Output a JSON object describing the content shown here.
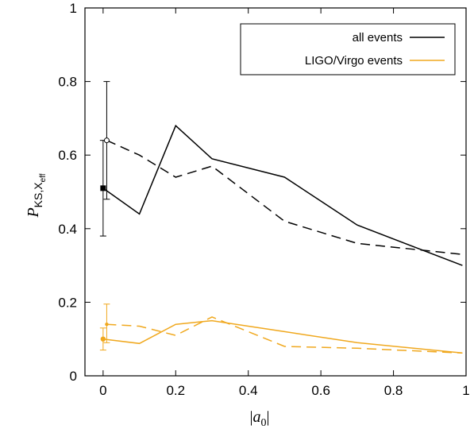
{
  "chart_data": {
    "type": "line",
    "xlabel": "|a0|",
    "xlabel_parts": {
      "open": "|",
      "var": "a",
      "sub": "0",
      "close": "|"
    },
    "ylabel": "PKS,Xeff",
    "ylabel_parts": {
      "var": "P",
      "sub": "KS,X",
      "subsub": "eff"
    },
    "xlim": [
      -0.05,
      1.0
    ],
    "ylim": [
      0,
      1
    ],
    "xticks": [
      0,
      0.2,
      0.4,
      0.6,
      0.8,
      1
    ],
    "yticks": [
      0,
      0.2,
      0.4,
      0.6,
      0.8,
      1
    ],
    "xtick_labels": [
      "0",
      "0.2",
      "0.4",
      "0.6",
      "0.8",
      "1"
    ],
    "ytick_labels": [
      "0",
      "0.2",
      "0.4",
      "0.6",
      "0.8",
      "1"
    ],
    "grid": false,
    "legend_position": "top-right",
    "series": [
      {
        "name": "all events",
        "color": "#000000",
        "style": "solid",
        "x": [
          0.0,
          0.1,
          0.2,
          0.3,
          0.5,
          0.7,
          0.99
        ],
        "y": [
          0.51,
          0.44,
          0.68,
          0.59,
          0.54,
          0.41,
          0.3
        ],
        "error_point": {
          "x": 0.0,
          "y": 0.51,
          "ylow": 0.38,
          "yhigh": 0.64,
          "marker": "filled-square"
        }
      },
      {
        "color": "#000000",
        "style": "dashed",
        "x": [
          0.01,
          0.1,
          0.2,
          0.3,
          0.5,
          0.7,
          0.99
        ],
        "y": [
          0.64,
          0.6,
          0.54,
          0.57,
          0.42,
          0.36,
          0.33
        ],
        "error_point": {
          "x": 0.01,
          "y": 0.64,
          "ylow": 0.48,
          "yhigh": 0.8,
          "marker": "open-circle"
        }
      },
      {
        "name": "LIGO/Virgo events",
        "color": "#f0a81e",
        "style": "solid",
        "x": [
          0.0,
          0.1,
          0.2,
          0.3,
          0.5,
          0.7,
          0.99
        ],
        "y": [
          0.1,
          0.088,
          0.14,
          0.15,
          0.12,
          0.09,
          0.062
        ],
        "error_point": {
          "x": 0.0,
          "y": 0.1,
          "ylow": 0.07,
          "yhigh": 0.13,
          "marker": "filled-circle"
        }
      },
      {
        "color": "#f0a81e",
        "style": "dashed",
        "x": [
          0.01,
          0.1,
          0.2,
          0.3,
          0.5,
          0.7,
          0.99
        ],
        "y": [
          0.14,
          0.135,
          0.11,
          0.16,
          0.08,
          0.075,
          0.062
        ],
        "error_point": {
          "x": 0.01,
          "y": 0.14,
          "ylow": 0.09,
          "yhigh": 0.195,
          "marker": "small-circle"
        }
      }
    ]
  }
}
